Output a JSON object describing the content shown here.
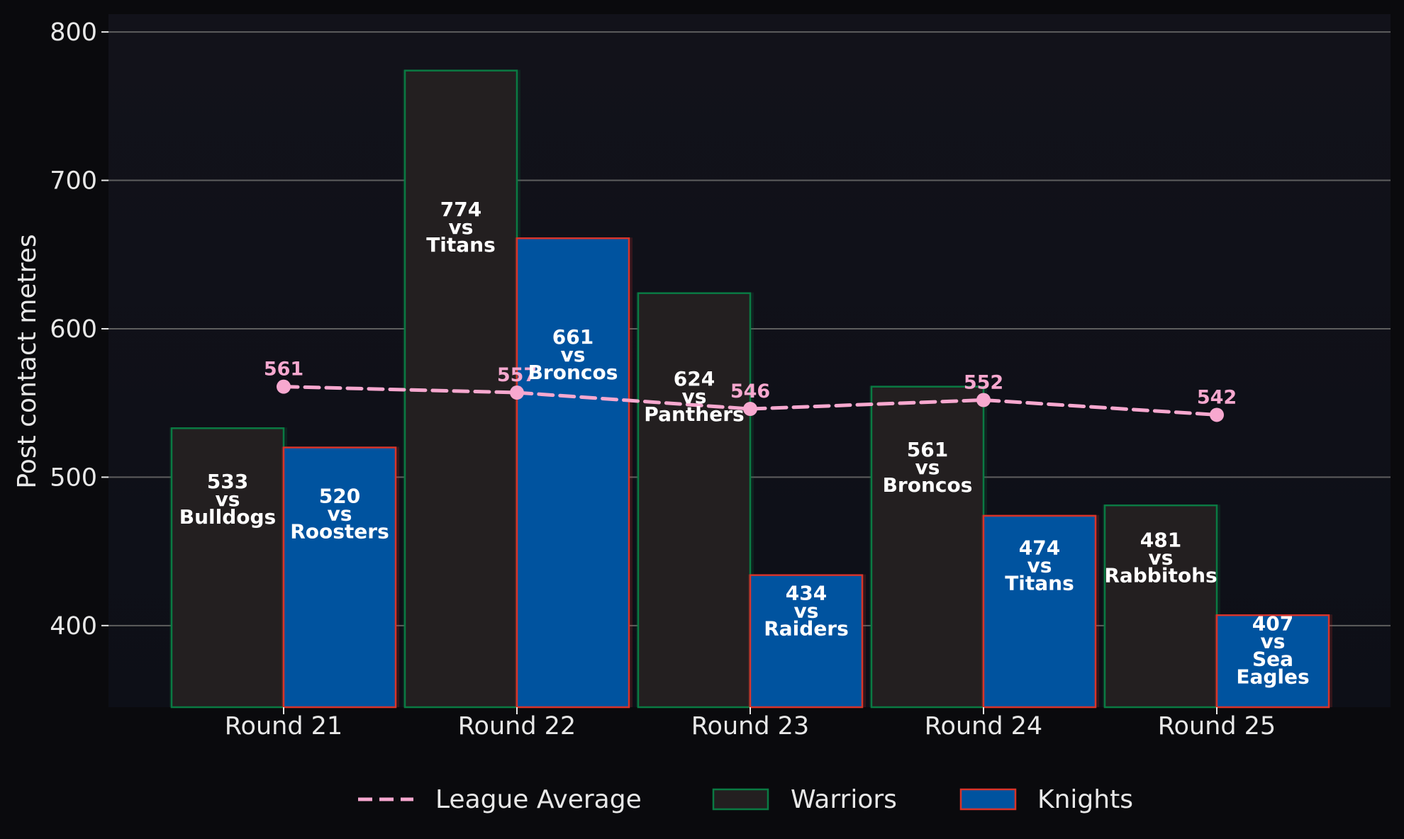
{
  "chart_data": {
    "type": "bar",
    "categories": [
      "Round 21",
      "Round 22",
      "Round 23",
      "Round 24",
      "Round 25"
    ],
    "ylabel": "Post contact metres",
    "xlabel": "",
    "ylim": [
      345,
      812
    ],
    "yticks": [
      400,
      500,
      600,
      700,
      800
    ],
    "grid": true,
    "legend_position": "bottom",
    "series": [
      {
        "name": "Warriors",
        "values": [
          533,
          774,
          624,
          561,
          481
        ],
        "opponents": [
          "Bulldogs",
          "Titans",
          "Panthers",
          "Broncos",
          "Rabbitohs"
        ],
        "fill": "#231f20",
        "edge": "#0a7a43"
      },
      {
        "name": "Knights",
        "values": [
          520,
          661,
          434,
          474,
          407
        ],
        "opponents": [
          "Roosters",
          "Broncos",
          "Raiders",
          "Titans",
          "Sea Eagles"
        ],
        "fill": "#00539f",
        "edge": "#d8342a"
      }
    ],
    "line": {
      "name": "League Average",
      "values": [
        561,
        557,
        546,
        552,
        542
      ],
      "color": "#f7a8cf",
      "style": "dashed"
    },
    "vs_word": "vs"
  },
  "colors": {
    "page_bg": "#0a0a0d",
    "plot_bg": "#12121a",
    "grid": "#5e5e5e",
    "text": "#e8e8e8"
  }
}
